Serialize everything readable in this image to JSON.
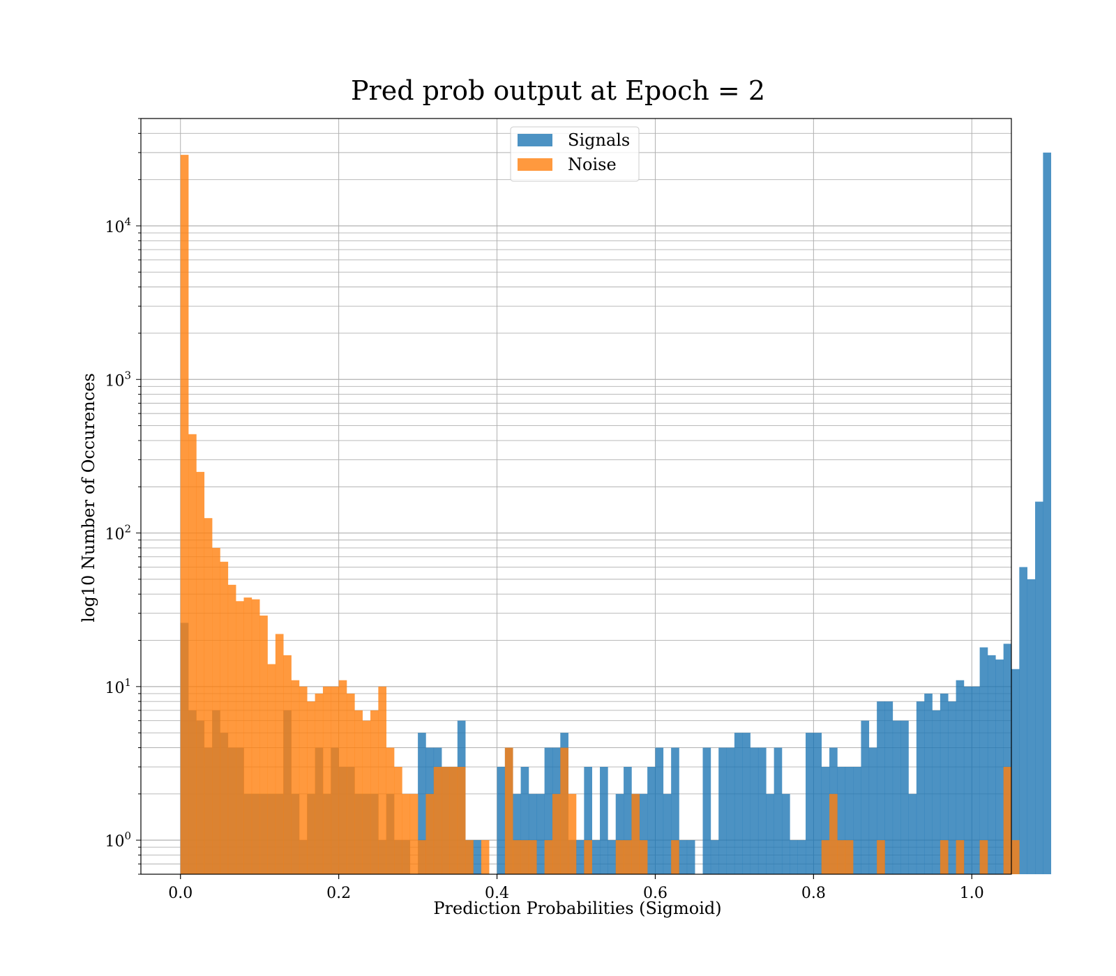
{
  "chart_data": {
    "type": "bar",
    "title": "Pred prob output at Epoch = 2",
    "xlabel": "Prediction Probabilities (Sigmoid)",
    "ylabel": "log10 Number of Occurences",
    "xlim": [
      -0.05,
      1.05
    ],
    "ylim": [
      0.6,
      50000
    ],
    "yscale": "log",
    "grid": "major-and-minor",
    "legend_position": "top-center",
    "x_ticks": [
      0.0,
      0.2,
      0.4,
      0.6,
      0.8,
      1.0
    ],
    "x_tick_labels": [
      "0.0",
      "0.2",
      "0.4",
      "0.6",
      "0.8",
      "1.0"
    ],
    "y_ticks": [
      1,
      10,
      100,
      1000,
      10000
    ],
    "y_tick_labels": [
      {
        "base": "10",
        "exp": "0"
      },
      {
        "base": "10",
        "exp": "1"
      },
      {
        "base": "10",
        "exp": "2"
      },
      {
        "base": "10",
        "exp": "3"
      },
      {
        "base": "10",
        "exp": "4"
      }
    ],
    "bin_width": 0.01,
    "series": [
      {
        "name": "Signals",
        "color": "#1f77b4",
        "opacity": 0.8,
        "bins_start": 0.0,
        "values": [
          26,
          7,
          6,
          4,
          7,
          5,
          4,
          4,
          2,
          2,
          2,
          2,
          2,
          7,
          2,
          1,
          2,
          4,
          2,
          4,
          3,
          3,
          2,
          2,
          2,
          1,
          2,
          1,
          1,
          0,
          5,
          4,
          4,
          3,
          3,
          6,
          1,
          1,
          0,
          0,
          3,
          4,
          2,
          3,
          2,
          2,
          4,
          4,
          5,
          1,
          1,
          3,
          1,
          3,
          1,
          2,
          3,
          2,
          2,
          3,
          4,
          2,
          4,
          1,
          1,
          0,
          4,
          1,
          4,
          4,
          5,
          5,
          4,
          4,
          2,
          4,
          2,
          1,
          1,
          5,
          5,
          3,
          4,
          3,
          3,
          3,
          6,
          4,
          8,
          8,
          6,
          6,
          2,
          8,
          9,
          7,
          9,
          8,
          11,
          10,
          10,
          18,
          16,
          15,
          19,
          13,
          60,
          50,
          160,
          30000
        ]
      },
      {
        "name": "Noise",
        "color": "#ff7f0e",
        "opacity": 0.8,
        "bins_start": 0.0,
        "values": [
          29000,
          440,
          250,
          125,
          80,
          65,
          46,
          36,
          38,
          37,
          29,
          14,
          22,
          16,
          11,
          10,
          8,
          9,
          10,
          10,
          11,
          9,
          7,
          6,
          7,
          10,
          4,
          3,
          2,
          2,
          1,
          2,
          3,
          3,
          3,
          3,
          1,
          0,
          1,
          0,
          0,
          4,
          1,
          1,
          1,
          0,
          1,
          2,
          4,
          2,
          0,
          1,
          0,
          0,
          0,
          1,
          1,
          2,
          1,
          0,
          0,
          0,
          1,
          0,
          0,
          0,
          0,
          0,
          0,
          0,
          0,
          0,
          0,
          0,
          0,
          0,
          0,
          0,
          0,
          0,
          0,
          1,
          2,
          1,
          1,
          0,
          0,
          0,
          1,
          0,
          0,
          0,
          0,
          0,
          0,
          0,
          1,
          0,
          1,
          0,
          0,
          1,
          0,
          0,
          3,
          1,
          0,
          0,
          0,
          0
        ]
      }
    ]
  }
}
